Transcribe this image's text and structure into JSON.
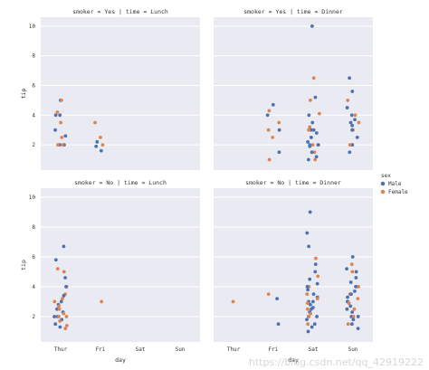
{
  "watermark": "https://blog.csdn.net/qq_42919222",
  "colors": {
    "Male": "#4c72b0",
    "Female": "#dd8452",
    "panel": "#eaeaf2"
  },
  "chart_data": {
    "type": "scatter",
    "kind": "strip",
    "x_field": "day",
    "y_field": "tip",
    "hue_field": "sex",
    "xlabel": "day",
    "ylabel": "tip",
    "categories": [
      "Thur",
      "Fri",
      "Sat",
      "Sun"
    ],
    "ylim": [
      0.3,
      10.6
    ],
    "yticks": [
      2,
      4,
      6,
      8,
      10
    ],
    "grid": true,
    "legend": {
      "title": "sex",
      "placement": "right",
      "entries": [
        "Male",
        "Female"
      ]
    },
    "facets": [
      {
        "title": "smoker = Yes | time = Lunch",
        "points": [
          {
            "day": "Thur",
            "sex": "Male",
            "tip": 5.0
          },
          {
            "day": "Thur",
            "sex": "Female",
            "tip": 5.0
          },
          {
            "day": "Thur",
            "sex": "Male",
            "tip": 4.0
          },
          {
            "day": "Thur",
            "sex": "Female",
            "tip": 4.2
          },
          {
            "day": "Thur",
            "sex": "Male",
            "tip": 4.0
          },
          {
            "day": "Thur",
            "sex": "Female",
            "tip": 3.5
          },
          {
            "day": "Thur",
            "sex": "Male",
            "tip": 3.0
          },
          {
            "day": "Thur",
            "sex": "Male",
            "tip": 2.6
          },
          {
            "day": "Thur",
            "sex": "Female",
            "tip": 2.5
          },
          {
            "day": "Thur",
            "sex": "Male",
            "tip": 2.0
          },
          {
            "day": "Thur",
            "sex": "Female",
            "tip": 2.0
          },
          {
            "day": "Thur",
            "sex": "Male",
            "tip": 2.0
          },
          {
            "day": "Thur",
            "sex": "Female",
            "tip": 2.0
          },
          {
            "day": "Fri",
            "sex": "Female",
            "tip": 3.5
          },
          {
            "day": "Fri",
            "sex": "Female",
            "tip": 2.5
          },
          {
            "day": "Fri",
            "sex": "Male",
            "tip": 2.2
          },
          {
            "day": "Fri",
            "sex": "Female",
            "tip": 2.0
          },
          {
            "day": "Fri",
            "sex": "Male",
            "tip": 1.9
          },
          {
            "day": "Fri",
            "sex": "Male",
            "tip": 1.6
          }
        ]
      },
      {
        "title": "smoker = Yes | time = Dinner",
        "points": [
          {
            "day": "Fri",
            "sex": "Male",
            "tip": 4.7
          },
          {
            "day": "Fri",
            "sex": "Female",
            "tip": 4.3
          },
          {
            "day": "Fri",
            "sex": "Male",
            "tip": 4.0
          },
          {
            "day": "Fri",
            "sex": "Female",
            "tip": 3.5
          },
          {
            "day": "Fri",
            "sex": "Male",
            "tip": 3.0
          },
          {
            "day": "Fri",
            "sex": "Female",
            "tip": 3.0
          },
          {
            "day": "Fri",
            "sex": "Female",
            "tip": 2.5
          },
          {
            "day": "Fri",
            "sex": "Male",
            "tip": 1.5
          },
          {
            "day": "Fri",
            "sex": "Female",
            "tip": 1.0
          },
          {
            "day": "Sat",
            "sex": "Male",
            "tip": 10.0
          },
          {
            "day": "Sat",
            "sex": "Female",
            "tip": 6.5
          },
          {
            "day": "Sat",
            "sex": "Male",
            "tip": 5.2
          },
          {
            "day": "Sat",
            "sex": "Female",
            "tip": 5.0
          },
          {
            "day": "Sat",
            "sex": "Male",
            "tip": 4.0
          },
          {
            "day": "Sat",
            "sex": "Female",
            "tip": 4.1
          },
          {
            "day": "Sat",
            "sex": "Male",
            "tip": 3.5
          },
          {
            "day": "Sat",
            "sex": "Female",
            "tip": 3.2
          },
          {
            "day": "Sat",
            "sex": "Male",
            "tip": 3.0
          },
          {
            "day": "Sat",
            "sex": "Male",
            "tip": 3.0
          },
          {
            "day": "Sat",
            "sex": "Female",
            "tip": 3.0
          },
          {
            "day": "Sat",
            "sex": "Male",
            "tip": 2.8
          },
          {
            "day": "Sat",
            "sex": "Female",
            "tip": 2.5
          },
          {
            "day": "Sat",
            "sex": "Male",
            "tip": 2.5
          },
          {
            "day": "Sat",
            "sex": "Male",
            "tip": 2.2
          },
          {
            "day": "Sat",
            "sex": "Female",
            "tip": 2.0
          },
          {
            "day": "Sat",
            "sex": "Male",
            "tip": 2.0
          },
          {
            "day": "Sat",
            "sex": "Male",
            "tip": 2.0
          },
          {
            "day": "Sat",
            "sex": "Female",
            "tip": 2.0
          },
          {
            "day": "Sat",
            "sex": "Male",
            "tip": 1.9
          },
          {
            "day": "Sat",
            "sex": "Female",
            "tip": 1.5
          },
          {
            "day": "Sat",
            "sex": "Male",
            "tip": 1.5
          },
          {
            "day": "Sat",
            "sex": "Male",
            "tip": 1.2
          },
          {
            "day": "Sat",
            "sex": "Female",
            "tip": 1.0
          },
          {
            "day": "Sat",
            "sex": "Male",
            "tip": 1.0
          },
          {
            "day": "Sun",
            "sex": "Male",
            "tip": 6.5
          },
          {
            "day": "Sun",
            "sex": "Male",
            "tip": 5.6
          },
          {
            "day": "Sun",
            "sex": "Female",
            "tip": 5.0
          },
          {
            "day": "Sun",
            "sex": "Male",
            "tip": 4.5
          },
          {
            "day": "Sun",
            "sex": "Male",
            "tip": 4.0
          },
          {
            "day": "Sun",
            "sex": "Female",
            "tip": 4.0
          },
          {
            "day": "Sun",
            "sex": "Male",
            "tip": 3.7
          },
          {
            "day": "Sun",
            "sex": "Female",
            "tip": 3.5
          },
          {
            "day": "Sun",
            "sex": "Male",
            "tip": 3.5
          },
          {
            "day": "Sun",
            "sex": "Male",
            "tip": 3.3
          },
          {
            "day": "Sun",
            "sex": "Female",
            "tip": 3.0
          },
          {
            "day": "Sun",
            "sex": "Male",
            "tip": 3.0
          },
          {
            "day": "Sun",
            "sex": "Male",
            "tip": 2.5
          },
          {
            "day": "Sun",
            "sex": "Male",
            "tip": 2.0
          },
          {
            "day": "Sun",
            "sex": "Male",
            "tip": 2.0
          },
          {
            "day": "Sun",
            "sex": "Female",
            "tip": 2.0
          },
          {
            "day": "Sun",
            "sex": "Male",
            "tip": 1.5
          }
        ]
      },
      {
        "title": "smoker = No | time = Lunch",
        "points": [
          {
            "day": "Thur",
            "sex": "Male",
            "tip": 6.7
          },
          {
            "day": "Thur",
            "sex": "Male",
            "tip": 5.8
          },
          {
            "day": "Thur",
            "sex": "Female",
            "tip": 5.2
          },
          {
            "day": "Thur",
            "sex": "Female",
            "tip": 5.0
          },
          {
            "day": "Thur",
            "sex": "Male",
            "tip": 4.6
          },
          {
            "day": "Thur",
            "sex": "Female",
            "tip": 4.0
          },
          {
            "day": "Thur",
            "sex": "Male",
            "tip": 4.0
          },
          {
            "day": "Thur",
            "sex": "Female",
            "tip": 3.5
          },
          {
            "day": "Thur",
            "sex": "Male",
            "tip": 3.4
          },
          {
            "day": "Thur",
            "sex": "Female",
            "tip": 3.2
          },
          {
            "day": "Thur",
            "sex": "Male",
            "tip": 3.0
          },
          {
            "day": "Thur",
            "sex": "Female",
            "tip": 3.0
          },
          {
            "day": "Thur",
            "sex": "Male",
            "tip": 2.8
          },
          {
            "day": "Thur",
            "sex": "Female",
            "tip": 2.7
          },
          {
            "day": "Thur",
            "sex": "Male",
            "tip": 2.5
          },
          {
            "day": "Thur",
            "sex": "Female",
            "tip": 2.5
          },
          {
            "day": "Thur",
            "sex": "Male",
            "tip": 2.3
          },
          {
            "day": "Thur",
            "sex": "Female",
            "tip": 2.2
          },
          {
            "day": "Thur",
            "sex": "Male",
            "tip": 2.0
          },
          {
            "day": "Thur",
            "sex": "Female",
            "tip": 2.0
          },
          {
            "day": "Thur",
            "sex": "Male",
            "tip": 2.0
          },
          {
            "day": "Thur",
            "sex": "Female",
            "tip": 2.0
          },
          {
            "day": "Thur",
            "sex": "Male",
            "tip": 1.8
          },
          {
            "day": "Thur",
            "sex": "Female",
            "tip": 1.7
          },
          {
            "day": "Thur",
            "sex": "Male",
            "tip": 1.5
          },
          {
            "day": "Thur",
            "sex": "Female",
            "tip": 1.4
          },
          {
            "day": "Thur",
            "sex": "Male",
            "tip": 1.3
          },
          {
            "day": "Thur",
            "sex": "Female",
            "tip": 1.2
          },
          {
            "day": "Fri",
            "sex": "Female",
            "tip": 3.0
          }
        ]
      },
      {
        "title": "smoker = No | time = Dinner",
        "points": [
          {
            "day": "Thur",
            "sex": "Female",
            "tip": 3.0
          },
          {
            "day": "Fri",
            "sex": "Female",
            "tip": 3.5
          },
          {
            "day": "Fri",
            "sex": "Male",
            "tip": 3.2
          },
          {
            "day": "Fri",
            "sex": "Male",
            "tip": 1.5
          },
          {
            "day": "Sat",
            "sex": "Male",
            "tip": 9.0
          },
          {
            "day": "Sat",
            "sex": "Male",
            "tip": 7.6
          },
          {
            "day": "Sat",
            "sex": "Male",
            "tip": 6.7
          },
          {
            "day": "Sat",
            "sex": "Female",
            "tip": 5.9
          },
          {
            "day": "Sat",
            "sex": "Male",
            "tip": 5.5
          },
          {
            "day": "Sat",
            "sex": "Male",
            "tip": 5.0
          },
          {
            "day": "Sat",
            "sex": "Female",
            "tip": 4.7
          },
          {
            "day": "Sat",
            "sex": "Male",
            "tip": 4.5
          },
          {
            "day": "Sat",
            "sex": "Male",
            "tip": 4.2
          },
          {
            "day": "Sat",
            "sex": "Female",
            "tip": 4.0
          },
          {
            "day": "Sat",
            "sex": "Male",
            "tip": 4.0
          },
          {
            "day": "Sat",
            "sex": "Male",
            "tip": 3.8
          },
          {
            "day": "Sat",
            "sex": "Female",
            "tip": 3.5
          },
          {
            "day": "Sat",
            "sex": "Male",
            "tip": 3.5
          },
          {
            "day": "Sat",
            "sex": "Male",
            "tip": 3.3
          },
          {
            "day": "Sat",
            "sex": "Female",
            "tip": 3.2
          },
          {
            "day": "Sat",
            "sex": "Male",
            "tip": 3.0
          },
          {
            "day": "Sat",
            "sex": "Male",
            "tip": 3.0
          },
          {
            "day": "Sat",
            "sex": "Female",
            "tip": 2.9
          },
          {
            "day": "Sat",
            "sex": "Male",
            "tip": 2.8
          },
          {
            "day": "Sat",
            "sex": "Male",
            "tip": 2.6
          },
          {
            "day": "Sat",
            "sex": "Female",
            "tip": 2.5
          },
          {
            "day": "Sat",
            "sex": "Male",
            "tip": 2.5
          },
          {
            "day": "Sat",
            "sex": "Male",
            "tip": 2.3
          },
          {
            "day": "Sat",
            "sex": "Female",
            "tip": 2.2
          },
          {
            "day": "Sat",
            "sex": "Male",
            "tip": 2.0
          },
          {
            "day": "Sat",
            "sex": "Male",
            "tip": 2.0
          },
          {
            "day": "Sat",
            "sex": "Female",
            "tip": 2.0
          },
          {
            "day": "Sat",
            "sex": "Male",
            "tip": 1.8
          },
          {
            "day": "Sat",
            "sex": "Male",
            "tip": 1.5
          },
          {
            "day": "Sat",
            "sex": "Female",
            "tip": 1.5
          },
          {
            "day": "Sat",
            "sex": "Male",
            "tip": 1.3
          },
          {
            "day": "Sat",
            "sex": "Male",
            "tip": 1.0
          },
          {
            "day": "Sun",
            "sex": "Male",
            "tip": 6.0
          },
          {
            "day": "Sun",
            "sex": "Female",
            "tip": 5.5
          },
          {
            "day": "Sun",
            "sex": "Male",
            "tip": 5.2
          },
          {
            "day": "Sun",
            "sex": "Male",
            "tip": 5.0
          },
          {
            "day": "Sun",
            "sex": "Female",
            "tip": 5.0
          },
          {
            "day": "Sun",
            "sex": "Male",
            "tip": 4.6
          },
          {
            "day": "Sun",
            "sex": "Male",
            "tip": 4.3
          },
          {
            "day": "Sun",
            "sex": "Female",
            "tip": 4.0
          },
          {
            "day": "Sun",
            "sex": "Male",
            "tip": 4.0
          },
          {
            "day": "Sun",
            "sex": "Male",
            "tip": 3.7
          },
          {
            "day": "Sun",
            "sex": "Female",
            "tip": 3.5
          },
          {
            "day": "Sun",
            "sex": "Male",
            "tip": 3.5
          },
          {
            "day": "Sun",
            "sex": "Male",
            "tip": 3.3
          },
          {
            "day": "Sun",
            "sex": "Female",
            "tip": 3.2
          },
          {
            "day": "Sun",
            "sex": "Male",
            "tip": 3.0
          },
          {
            "day": "Sun",
            "sex": "Male",
            "tip": 3.0
          },
          {
            "day": "Sun",
            "sex": "Female",
            "tip": 2.9
          },
          {
            "day": "Sun",
            "sex": "Male",
            "tip": 2.7
          },
          {
            "day": "Sun",
            "sex": "Male",
            "tip": 2.5
          },
          {
            "day": "Sun",
            "sex": "Female",
            "tip": 2.5
          },
          {
            "day": "Sun",
            "sex": "Male",
            "tip": 2.3
          },
          {
            "day": "Sun",
            "sex": "Male",
            "tip": 2.0
          },
          {
            "day": "Sun",
            "sex": "Female",
            "tip": 2.0
          },
          {
            "day": "Sun",
            "sex": "Male",
            "tip": 2.0
          },
          {
            "day": "Sun",
            "sex": "Male",
            "tip": 1.8
          },
          {
            "day": "Sun",
            "sex": "Male",
            "tip": 1.5
          },
          {
            "day": "Sun",
            "sex": "Female",
            "tip": 1.5
          },
          {
            "day": "Sun",
            "sex": "Male",
            "tip": 1.2
          }
        ]
      }
    ]
  }
}
